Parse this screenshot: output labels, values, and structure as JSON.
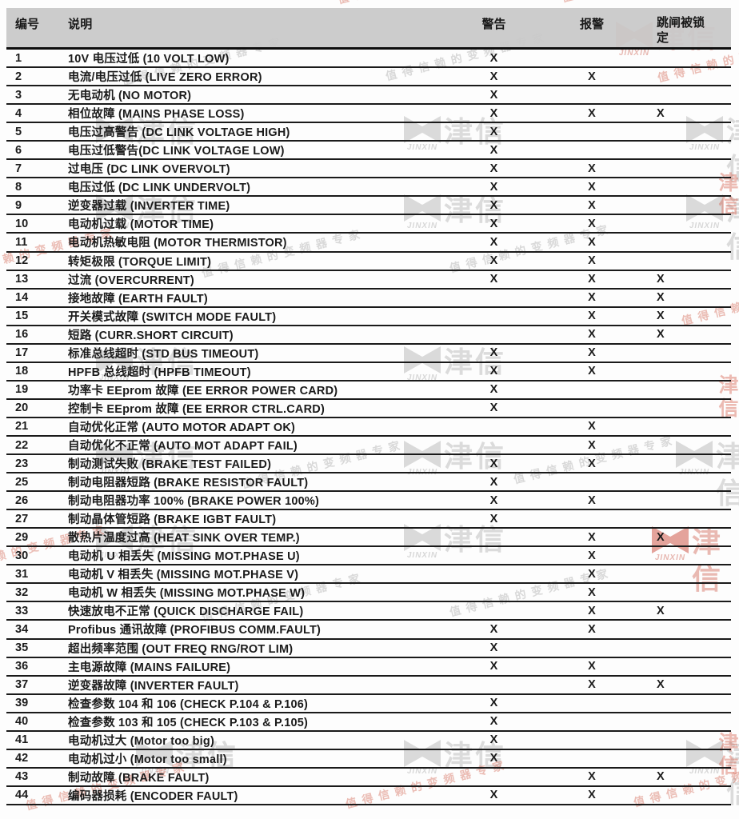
{
  "table": {
    "columns": [
      "编号",
      "说明",
      "警告",
      "报警",
      "跳闸被锁定"
    ],
    "mark": "X",
    "rows": [
      {
        "num": "1",
        "desc": "10V 电压过低 (10 VOLT LOW)",
        "warn": "X",
        "alarm": "",
        "trip": ""
      },
      {
        "num": "2",
        "desc": "电流/电压过低 (LIVE ZERO ERROR)",
        "warn": "X",
        "alarm": "X",
        "trip": ""
      },
      {
        "num": "3",
        "desc": "无电动机 (NO MOTOR)",
        "warn": "X",
        "alarm": "",
        "trip": ""
      },
      {
        "num": "4",
        "desc": "相位故障 (MAINS PHASE LOSS)",
        "warn": "X",
        "alarm": "X",
        "trip": "X"
      },
      {
        "num": "5",
        "desc": "电压过高警告 (DC LINK VOLTAGE HIGH)",
        "warn": "X",
        "alarm": "",
        "trip": ""
      },
      {
        "num": "6",
        "desc": "电压过低警告(DC LINK VOLTAGE LOW)",
        "warn": "X",
        "alarm": "",
        "trip": ""
      },
      {
        "num": "7",
        "desc": "过电压 (DC LINK OVERVOLT)",
        "warn": "X",
        "alarm": "X",
        "trip": ""
      },
      {
        "num": "8",
        "desc": "电压过低 (DC LINK UNDERVOLT)",
        "warn": "X",
        "alarm": "X",
        "trip": ""
      },
      {
        "num": "9",
        "desc": "逆变器过载 (INVERTER TIME)",
        "warn": "X",
        "alarm": "X",
        "trip": ""
      },
      {
        "num": "10",
        "desc": "电动机过载 (MOTOR TIME)",
        "warn": "X",
        "alarm": "X",
        "trip": ""
      },
      {
        "num": "11",
        "desc": "电动机热敏电阻 (MOTOR THERMISTOR)",
        "warn": "X",
        "alarm": "X",
        "trip": ""
      },
      {
        "num": "12",
        "desc": "转矩极限 (TORQUE LIMIT)",
        "warn": "X",
        "alarm": "X",
        "trip": ""
      },
      {
        "num": "13",
        "desc": "过流 (OVERCURRENT)",
        "warn": "X",
        "alarm": "X",
        "trip": "X"
      },
      {
        "num": "14",
        "desc": "接地故障 (EARTH FAULT)",
        "warn": "",
        "alarm": "X",
        "trip": "X"
      },
      {
        "num": "15",
        "desc": "开关模式故障 (SWITCH MODE FAULT)",
        "warn": "",
        "alarm": "X",
        "trip": "X"
      },
      {
        "num": "16",
        "desc": "短路 (CURR.SHORT CIRCUIT)",
        "warn": "",
        "alarm": "X",
        "trip": "X"
      },
      {
        "num": "17",
        "desc": "标准总线超时 (STD BUS TIMEOUT)",
        "warn": "X",
        "alarm": "X",
        "trip": ""
      },
      {
        "num": "18",
        "desc": "HPFB 总线超时 (HPFB TIMEOUT)",
        "warn": "X",
        "alarm": "X",
        "trip": ""
      },
      {
        "num": "19",
        "desc": "功率卡 EEprom 故障 (EE ERROR POWER CARD)",
        "warn": "X",
        "alarm": "",
        "trip": ""
      },
      {
        "num": "20",
        "desc": "控制卡 EEprom 故障 (EE ERROR CTRL.CARD)",
        "warn": "X",
        "alarm": "",
        "trip": ""
      },
      {
        "num": "21",
        "desc": "自动优化正常 (AUTO MOTOR ADAPT OK)",
        "warn": "",
        "alarm": "X",
        "trip": ""
      },
      {
        "num": "22",
        "desc": "自动优化不正常 (AUTO MOT ADAPT FAIL)",
        "warn": "",
        "alarm": "X",
        "trip": ""
      },
      {
        "num": "23",
        "desc": "制动测试失败 (BRAKE TEST FAILED)",
        "warn": "X",
        "alarm": "X",
        "trip": ""
      },
      {
        "num": "25",
        "desc": "制动电阻器短路 (BRAKE RESISTOR FAULT)",
        "warn": "X",
        "alarm": "",
        "trip": ""
      },
      {
        "num": "26",
        "desc": "制动电阻器功率 100% (BRAKE POWER 100%)",
        "warn": "X",
        "alarm": "X",
        "trip": ""
      },
      {
        "num": "27",
        "desc": "制动晶体管短路 (BRAKE IGBT FAULT)",
        "warn": "X",
        "alarm": "",
        "trip": ""
      },
      {
        "num": "29",
        "desc": "散热片温度过高 (HEAT SINK OVER TEMP.)",
        "warn": "",
        "alarm": "X",
        "trip": "X"
      },
      {
        "num": "30",
        "desc": "电动机 U 相丢失 (MISSING MOT.PHASE U)",
        "warn": "",
        "alarm": "X",
        "trip": ""
      },
      {
        "num": "31",
        "desc": "电动机 V 相丢失 (MISSING MOT.PHASE V)",
        "warn": "",
        "alarm": "X",
        "trip": ""
      },
      {
        "num": "32",
        "desc": "电动机 W 相丢失 (MISSING MOT.PHASE W)",
        "warn": "",
        "alarm": "X",
        "trip": ""
      },
      {
        "num": "33",
        "desc": "快速放电不正常 (QUICK DISCHARGE FAIL)",
        "warn": "",
        "alarm": "X",
        "trip": "X"
      },
      {
        "num": "34",
        "desc": "Profibus 通讯故障 (PROFIBUS COMM.FAULT)",
        "warn": "X",
        "alarm": "X",
        "trip": ""
      },
      {
        "num": "35",
        "desc": "超出频率范围 (OUT FREQ RNG/ROT LIM)",
        "warn": "X",
        "alarm": "",
        "trip": ""
      },
      {
        "num": "36",
        "desc": "主电源故障 (MAINS FAILURE)",
        "warn": "X",
        "alarm": "X",
        "trip": ""
      },
      {
        "num": "37",
        "desc": "逆变器故障 (INVERTER FAULT)",
        "warn": "",
        "alarm": "X",
        "trip": "X"
      },
      {
        "num": "39",
        "desc": "检查参数 104 和 106 (CHECK P.104 & P.106)",
        "warn": "X",
        "alarm": "",
        "trip": ""
      },
      {
        "num": "40",
        "desc": "检查参数 103 和 105 (CHECK P.103 & P.105)",
        "warn": "X",
        "alarm": "",
        "trip": ""
      },
      {
        "num": "41",
        "desc": "电动机过大 (Motor too big)",
        "warn": "X",
        "alarm": "",
        "trip": ""
      },
      {
        "num": "42",
        "desc": "电动机过小 (Motor too small)",
        "warn": "X",
        "alarm": "",
        "trip": ""
      },
      {
        "num": "43",
        "desc": "制动故障 (BRAKE FAULT)",
        "warn": "",
        "alarm": "X",
        "trip": "X"
      },
      {
        "num": "44",
        "desc": "编码器损耗 (ENCODER FAULT)",
        "warn": "X",
        "alarm": "X",
        "trip": ""
      }
    ]
  },
  "watermark": {
    "brand": "津信",
    "brand_en": "JINXIN",
    "slogan": "值得信赖的变频器专家",
    "gray_color": "#d5d5d5",
    "red_color": "#e0948a"
  }
}
